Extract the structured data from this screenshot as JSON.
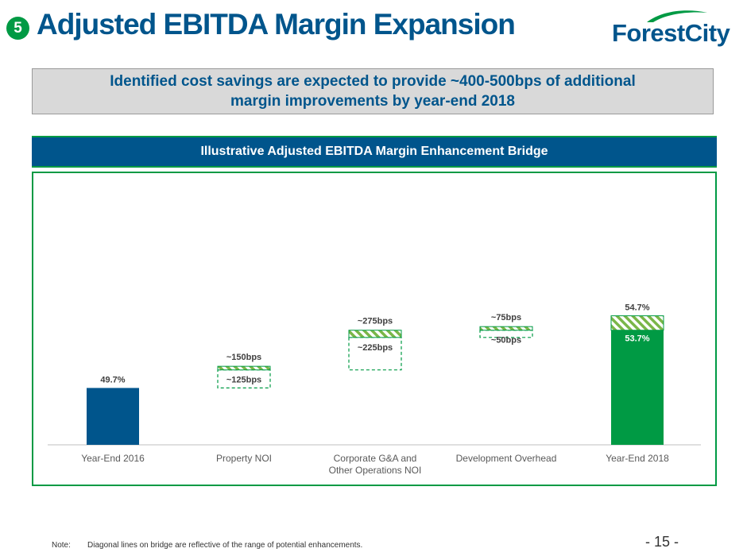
{
  "header": {
    "section_number": "5",
    "title": "Adjusted EBITDA Margin Expansion",
    "logo_text": "ForestCity"
  },
  "callout": {
    "line1": "Identified cost savings are expected to provide ~400-500bps of additional",
    "line2": "margin improvements by year-end 2018"
  },
  "section_bar": {
    "title": "Illustrative Adjusted EBITDA Margin Enhancement Bridge"
  },
  "chart_data": {
    "type": "bar",
    "subtype": "waterfall",
    "unit": "%",
    "categories": [
      "Year-End 2016",
      "Property NOI",
      "Corporate G&A and\nOther Operations NOI",
      "Development Overhead",
      "Year-End 2018"
    ],
    "bars": [
      {
        "category": "Year-End 2016",
        "kind": "total",
        "value": 49.7,
        "label": "49.7%",
        "color": "#00558c"
      },
      {
        "category": "Property NOI",
        "kind": "increment",
        "low_bps": 125,
        "high_bps": 150,
        "label_low": "~125bps",
        "label_high": "~150bps"
      },
      {
        "category": "Corporate G&A and\nOther Operations NOI",
        "kind": "increment",
        "low_bps": 225,
        "high_bps": 275,
        "label_low": "~225bps",
        "label_high": "~275bps"
      },
      {
        "category": "Development Overhead",
        "kind": "increment",
        "low_bps": 50,
        "high_bps": 75,
        "label_low": "~50bps",
        "label_high": "~75bps"
      },
      {
        "category": "Year-End 2018",
        "kind": "total",
        "value": 53.7,
        "value_high": 54.7,
        "label": "53.7%",
        "label_high": "54.7%",
        "color": "#009a44"
      }
    ],
    "ylim": [
      45,
      56
    ],
    "grid": false,
    "legend": "none"
  },
  "footnote": {
    "label": "Note:",
    "text": "Diagonal lines on bridge are reflective of the range of potential enhancements."
  },
  "page": {
    "number": "- 15 -"
  },
  "colors": {
    "brand_blue": "#00558c",
    "brand_green": "#009a44",
    "callout_gray": "#d9d9d9",
    "hatch_green": "#7ab648"
  }
}
